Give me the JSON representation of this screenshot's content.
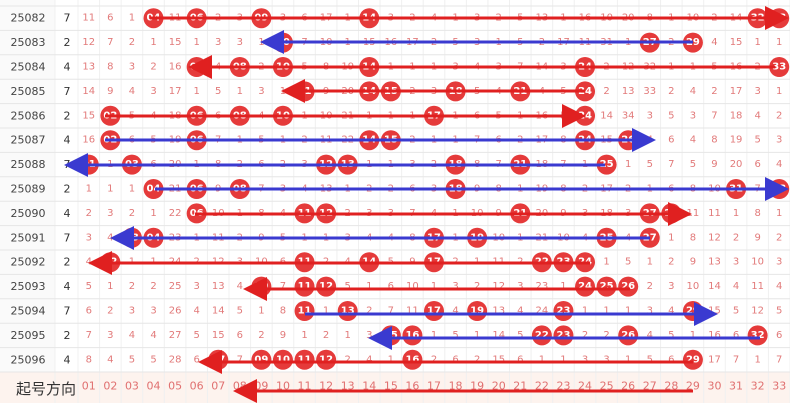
{
  "footer": {
    "label": "起号方向",
    "columns": [
      "01",
      "02",
      "03",
      "04",
      "05",
      "06",
      "07",
      "08",
      "09",
      "10",
      "11",
      "12",
      "13",
      "14",
      "15",
      "16",
      "17",
      "18",
      "19",
      "20",
      "21",
      "22",
      "23",
      "24",
      "25",
      "26",
      "27",
      "28",
      "29",
      "30",
      "31",
      "32",
      "33"
    ]
  },
  "rows": [
    {
      "issue": "25082",
      "mark": 7,
      "cells": [
        "11",
        "6",
        "1",
        "04",
        "11",
        "06",
        "2",
        "3",
        "09",
        "3",
        "6",
        "17",
        "1",
        "14",
        "3",
        "2",
        "4",
        "1",
        "3",
        "2",
        "5",
        "13",
        "1",
        "16",
        "10",
        "20",
        "8",
        "1",
        "10",
        "2",
        "14",
        "32",
        "33"
      ]
    },
    {
      "issue": "25083",
      "mark": 2,
      "cells": [
        "12",
        "7",
        "2",
        "1",
        "15",
        "1",
        "3",
        "3",
        "1",
        "10",
        "7",
        "10",
        "1",
        "15",
        "16",
        "17",
        "2",
        "5",
        "3",
        "1",
        "5",
        "2",
        "17",
        "11",
        "31",
        "1",
        "27",
        "2",
        "29",
        "4",
        "15",
        "1",
        "1"
      ]
    },
    {
      "issue": "25084",
      "mark": 4,
      "cells": [
        "13",
        "8",
        "3",
        "2",
        "16",
        "06",
        "4",
        "08",
        "2",
        "10",
        "5",
        "8",
        "19",
        "14",
        "1",
        "1",
        "1",
        "3",
        "4",
        "3",
        "7",
        "14",
        "3",
        "24",
        "2",
        "12",
        "32",
        "1",
        "1",
        "5",
        "16",
        "2",
        "33"
      ]
    },
    {
      "issue": "25085",
      "mark": 7,
      "cells": [
        "14",
        "9",
        "4",
        "3",
        "17",
        "1",
        "5",
        "1",
        "3",
        "1",
        "11",
        "9",
        "20",
        "14",
        "15",
        "2",
        "3",
        "18",
        "5",
        "4",
        "21",
        "4",
        "5",
        "24",
        "2",
        "13",
        "33",
        "2",
        "4",
        "2",
        "17",
        "3",
        "1"
      ]
    },
    {
      "issue": "25086",
      "mark": 2,
      "cells": [
        "15",
        "02",
        "5",
        "4",
        "18",
        "06",
        "6",
        "08",
        "4",
        "10",
        "1",
        "10",
        "21",
        "1",
        "1",
        "1",
        "17",
        "1",
        "6",
        "5",
        "1",
        "16",
        "5",
        "24",
        "14",
        "34",
        "3",
        "5",
        "3",
        "7",
        "18",
        "4",
        "2"
      ]
    },
    {
      "issue": "25087",
      "mark": 4,
      "cells": [
        "16",
        "02",
        "6",
        "5",
        "19",
        "06",
        "7",
        "1",
        "5",
        "1",
        "2",
        "11",
        "22",
        "14",
        "15",
        "2",
        "1",
        "1",
        "7",
        "6",
        "2",
        "17",
        "8",
        "24",
        "15",
        "26",
        "4",
        "6",
        "4",
        "8",
        "19",
        "5",
        "3"
      ]
    },
    {
      "issue": "25088",
      "mark": 7,
      "cells": [
        "01",
        "1",
        "03",
        "6",
        "20",
        "1",
        "8",
        "2",
        "6",
        "2",
        "3",
        "12",
        "13",
        "1",
        "1",
        "3",
        "2",
        "18",
        "8",
        "7",
        "21",
        "18",
        "7",
        "1",
        "25",
        "1",
        "5",
        "7",
        "5",
        "9",
        "20",
        "6",
        "4"
      ]
    },
    {
      "issue": "25089",
      "mark": 2,
      "cells": [
        "1",
        "1",
        "1",
        "04",
        "21",
        "06",
        "9",
        "08",
        "7",
        "3",
        "4",
        "13",
        "1",
        "2",
        "2",
        "6",
        "3",
        "18",
        "9",
        "8",
        "1",
        "19",
        "8",
        "2",
        "17",
        "2",
        "1",
        "6",
        "8",
        "10",
        "31",
        "7",
        "33"
      ]
    },
    {
      "issue": "25090",
      "mark": 4,
      "cells": [
        "2",
        "3",
        "2",
        "1",
        "22",
        "06",
        "10",
        "1",
        "8",
        "4",
        "11",
        "12",
        "2",
        "3",
        "3",
        "7",
        "4",
        "1",
        "10",
        "9",
        "21",
        "20",
        "9",
        "3",
        "18",
        "3",
        "27",
        "28",
        "11",
        "11",
        "1",
        "8",
        "1"
      ]
    },
    {
      "issue": "25091",
      "mark": 7,
      "cells": [
        "3",
        "4",
        "03",
        "04",
        "23",
        "1",
        "11",
        "2",
        "9",
        "5",
        "1",
        "1",
        "3",
        "4",
        "4",
        "8",
        "17",
        "1",
        "19",
        "10",
        "1",
        "21",
        "10",
        "4",
        "25",
        "4",
        "27",
        "1",
        "8",
        "12",
        "2",
        "9",
        "2"
      ]
    },
    {
      "issue": "25092",
      "mark": 2,
      "cells": [
        "4",
        "02",
        "1",
        "1",
        "24",
        "2",
        "12",
        "3",
        "10",
        "6",
        "11",
        "2",
        "4",
        "14",
        "5",
        "9",
        "17",
        "2",
        "1",
        "11",
        "2",
        "22",
        "23",
        "24",
        "1",
        "5",
        "1",
        "2",
        "9",
        "13",
        "3",
        "10",
        "3"
      ]
    },
    {
      "issue": "25093",
      "mark": 4,
      "cells": [
        "5",
        "1",
        "2",
        "2",
        "25",
        "3",
        "13",
        "4",
        "09",
        "7",
        "11",
        "12",
        "5",
        "1",
        "6",
        "10",
        "1",
        "3",
        "2",
        "12",
        "3",
        "23",
        "1",
        "24",
        "25",
        "26",
        "2",
        "3",
        "10",
        "14",
        "4",
        "11",
        "4"
      ]
    },
    {
      "issue": "25094",
      "mark": 7,
      "cells": [
        "6",
        "2",
        "3",
        "3",
        "26",
        "4",
        "14",
        "5",
        "1",
        "8",
        "11",
        "1",
        "13",
        "2",
        "7",
        "11",
        "17",
        "4",
        "19",
        "13",
        "4",
        "24",
        "23",
        "1",
        "1",
        "1",
        "3",
        "4",
        "29",
        "15",
        "5",
        "12",
        "5"
      ]
    },
    {
      "issue": "25095",
      "mark": 2,
      "cells": [
        "7",
        "3",
        "4",
        "4",
        "27",
        "5",
        "15",
        "6",
        "2",
        "9",
        "1",
        "2",
        "1",
        "3",
        "15",
        "16",
        "1",
        "5",
        "1",
        "14",
        "5",
        "22",
        "23",
        "2",
        "2",
        "26",
        "4",
        "5",
        "1",
        "16",
        "6",
        "32",
        "6"
      ]
    },
    {
      "issue": "25096",
      "mark": 4,
      "cells": [
        "8",
        "4",
        "5",
        "5",
        "28",
        "6",
        "07",
        "7",
        "09",
        "10",
        "11",
        "12",
        "2",
        "4",
        "1",
        "16",
        "2",
        "6",
        "2",
        "15",
        "6",
        "1",
        "1",
        "3",
        "3",
        "1",
        "5",
        "6",
        "29",
        "17",
        "7",
        "1",
        "7"
      ]
    }
  ]
}
